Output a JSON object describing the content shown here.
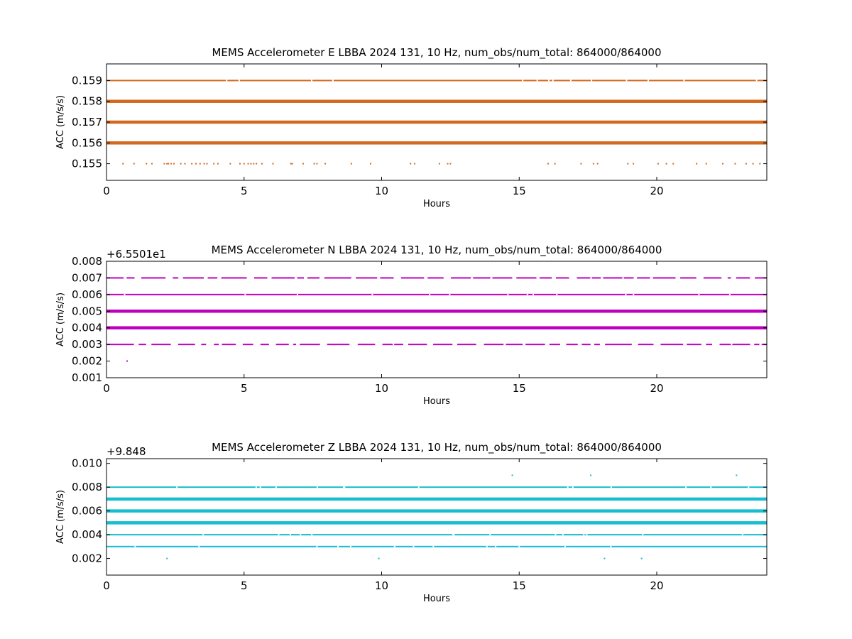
{
  "chart_data": [
    {
      "type": "scatter",
      "title": "MEMS Accelerometer E LBBA 2024 131, 10 Hz, num_obs/num_total: 864000/864000",
      "xlabel": "Hours",
      "ylabel": "ACC (m/s/s)",
      "offset_text": "",
      "color": "#d2691e",
      "xlim": [
        0,
        24
      ],
      "ylim": [
        0.1542,
        0.1598
      ],
      "xticks": [
        0,
        5,
        10,
        15,
        20
      ],
      "xtick_labels": [
        "0",
        "5",
        "10",
        "15",
        "20"
      ],
      "yticks": [
        0.155,
        0.156,
        0.157,
        0.158,
        0.159
      ],
      "ytick_labels": [
        "0.155",
        "0.156",
        "0.157",
        "0.158",
        "0.159"
      ],
      "bands": [
        {
          "value": 0.159,
          "density": "dense"
        },
        {
          "value": 0.158,
          "density": "solid"
        },
        {
          "value": 0.157,
          "density": "solid"
        },
        {
          "value": 0.156,
          "density": "solid"
        }
      ],
      "sparse_points": [
        {
          "y": 0.155,
          "x": [
            0.6,
            1.0,
            1.45,
            1.65,
            2.1,
            2.2,
            2.25,
            2.35,
            2.45,
            2.7,
            2.85,
            3.1,
            3.25,
            3.4,
            3.55,
            3.65,
            3.9,
            4.05,
            4.5,
            4.85,
            5.0,
            5.15,
            5.25,
            5.35,
            5.45,
            5.65,
            6.05,
            6.7,
            6.75,
            7.15,
            7.55,
            7.65,
            7.95,
            8.9,
            9.6,
            11.05,
            11.2,
            12.1,
            12.4,
            12.5,
            16.05,
            16.3,
            17.25,
            17.7,
            17.85,
            18.95,
            19.15,
            20.05,
            20.35,
            20.6,
            21.45,
            21.8,
            22.4,
            22.85,
            23.25,
            23.5,
            23.75
          ]
        }
      ]
    },
    {
      "type": "scatter",
      "title": "MEMS Accelerometer N LBBA 2024 131, 10 Hz, num_obs/num_total: 864000/864000",
      "xlabel": "Hours",
      "ylabel": "ACC (m/s/s)",
      "offset_text": "+6.5501e1",
      "color": "#bf00bf",
      "xlim": [
        0,
        24
      ],
      "ylim": [
        0.001,
        0.008
      ],
      "xticks": [
        0,
        5,
        10,
        15,
        20
      ],
      "xtick_labels": [
        "0",
        "5",
        "10",
        "15",
        "20"
      ],
      "yticks": [
        0.001,
        0.002,
        0.003,
        0.004,
        0.005,
        0.006,
        0.007,
        0.008
      ],
      "ytick_labels": [
        "0.001",
        "0.002",
        "0.003",
        "0.004",
        "0.005",
        "0.006",
        "0.007",
        "0.008"
      ],
      "bands": [
        {
          "value": 0.007,
          "density": "broken"
        },
        {
          "value": 0.006,
          "density": "dense"
        },
        {
          "value": 0.005,
          "density": "solid"
        },
        {
          "value": 0.004,
          "density": "solid"
        },
        {
          "value": 0.003,
          "density": "broken"
        }
      ],
      "sparse_points": [
        {
          "y": 0.002,
          "x": [
            0.75
          ]
        }
      ]
    },
    {
      "type": "scatter",
      "title": "MEMS Accelerometer Z LBBA 2024 131, 10 Hz, num_obs/num_total: 864000/864000",
      "xlabel": "Hours",
      "ylabel": "ACC (m/s/s)",
      "offset_text": "+9.848",
      "color": "#17becf",
      "xlim": [
        0,
        24
      ],
      "ylim": [
        0.0006,
        0.0104
      ],
      "xticks": [
        0,
        5,
        10,
        15,
        20
      ],
      "xtick_labels": [
        "0",
        "5",
        "10",
        "15",
        "20"
      ],
      "yticks": [
        0.002,
        0.004,
        0.006,
        0.008,
        0.01
      ],
      "ytick_labels": [
        "0.002",
        "0.004",
        "0.006",
        "0.008",
        "0.010"
      ],
      "bands": [
        {
          "value": 0.008,
          "density": "dense"
        },
        {
          "value": 0.007,
          "density": "solid"
        },
        {
          "value": 0.006,
          "density": "solid"
        },
        {
          "value": 0.005,
          "density": "solid"
        },
        {
          "value": 0.004,
          "density": "dense"
        },
        {
          "value": 0.003,
          "density": "dense"
        }
      ],
      "sparse_points": [
        {
          "y": 0.009,
          "x": [
            14.75,
            17.6,
            22.9
          ]
        },
        {
          "y": 0.002,
          "x": [
            2.2,
            9.9,
            18.1,
            19.45
          ]
        }
      ]
    }
  ]
}
